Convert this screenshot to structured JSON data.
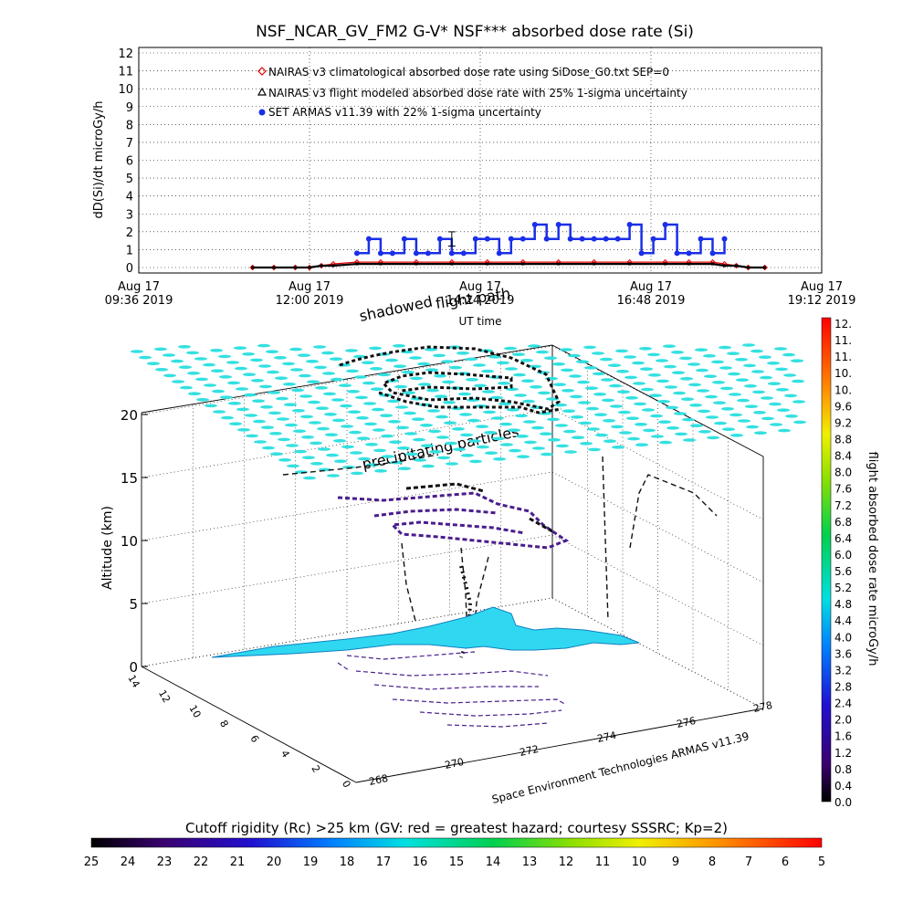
{
  "top_panel": {
    "title": "NSF_NCAR_GV_FM2 G-V* NSF*** absorbed dose rate (Si)",
    "ylabel": "dD(Si)/dt microGy/h",
    "xlabel": "UT time",
    "legend": [
      "NAIRAS v3 climatological absorbed dose rate using SiDose_G0.txt SEP=0",
      "NAIRAS v3 flight modeled absorbed dose rate with 25% 1-sigma uncertainty",
      "SET ARMAS v11.39 with 22% 1-sigma uncertainty"
    ],
    "xticks": [
      {
        "date": "Aug 17",
        "time": "09:36 2019"
      },
      {
        "date": "Aug 17",
        "time": "12:00 2019"
      },
      {
        "date": "Aug 17",
        "time": "14:24 2019"
      },
      {
        "date": "Aug 17",
        "time": "16:48 2019"
      },
      {
        "date": "Aug 17",
        "time": "19:12 2019"
      }
    ]
  },
  "overlays": {
    "shadowed": "shadowed",
    "flight_path": "flight path",
    "precipitating": "precipitating particles"
  },
  "three_d": {
    "zlabel": "Altitude (km)",
    "credit": "Space Environment Technologies ARMAS v11.39",
    "zticks": [
      "0",
      "5",
      "10",
      "15",
      "20"
    ],
    "lon_ticks": [
      "268",
      "270",
      "272",
      "274",
      "276",
      "278"
    ],
    "lat_ticks": [
      "14",
      "12",
      "10",
      "8",
      "6",
      "4",
      "2",
      "0"
    ]
  },
  "right_colorbar": {
    "label": "flight absorbed dose rate microGy/h",
    "ticks": [
      "12.",
      "11.",
      "11.",
      "10.",
      "10.",
      "9.6",
      "9.2",
      "8.8",
      "8.4",
      "8.0",
      "7.6",
      "7.2",
      "6.8",
      "6.4",
      "6.0",
      "5.6",
      "5.2",
      "4.8",
      "4.4",
      "4.0",
      "3.6",
      "3.2",
      "2.8",
      "2.4",
      "2.0",
      "1.6",
      "1.2",
      "0.8",
      "0.4",
      "0.0"
    ]
  },
  "bottom_colorbar": {
    "title": "Cutoff rigidity (Rc) >25 km (GV: red = greatest hazard; courtesy SSSRC; Kp=2)",
    "ticks": [
      "25",
      "24",
      "23",
      "22",
      "21",
      "20",
      "19",
      "18",
      "17",
      "16",
      "15",
      "14",
      "13",
      "12",
      "11",
      "10",
      "9",
      "8",
      "7",
      "6",
      "5"
    ]
  },
  "colors": {
    "nairas_clim": "#e00000",
    "nairas_flight": "#000000",
    "armas": "#1a2fe8",
    "cyan": "#33e0e0",
    "land": "#2fd8f0"
  },
  "chart_data": {
    "type": "scatter",
    "title": "NSF_NCAR_GV_FM2 G-V* NSF*** absorbed dose rate (Si)",
    "xlabel": "UT time",
    "ylabel": "dD(Si)/dt microGy/h",
    "xlim": [
      "09:36",
      "19:12"
    ],
    "ylim": [
      0,
      12
    ],
    "series": [
      {
        "name": "NAIRAS v3 climatological absorbed dose rate using SiDose_G0.txt SEP=0",
        "x": [
          "11:12",
          "11:30",
          "11:48",
          "12:00",
          "12:10",
          "12:20",
          "12:40",
          "13:00",
          "13:30",
          "14:00",
          "14:30",
          "15:00",
          "15:30",
          "16:00",
          "16:30",
          "17:00",
          "17:20",
          "17:40",
          "17:50",
          "18:00",
          "18:10",
          "18:24"
        ],
        "y": [
          0.0,
          0.0,
          0.0,
          0.0,
          0.1,
          0.2,
          0.3,
          0.3,
          0.3,
          0.3,
          0.3,
          0.3,
          0.3,
          0.3,
          0.3,
          0.3,
          0.3,
          0.3,
          0.2,
          0.1,
          0.0,
          0.0
        ]
      },
      {
        "name": "NAIRAS v3 flight modeled absorbed dose rate with 25% 1-sigma uncertainty",
        "x": [
          "11:12",
          "11:30",
          "11:48",
          "12:00",
          "12:10",
          "12:20",
          "12:40",
          "13:00",
          "13:30",
          "14:00",
          "14:30",
          "15:00",
          "15:30",
          "16:00",
          "16:30",
          "17:00",
          "17:20",
          "17:40",
          "17:50",
          "18:00",
          "18:10",
          "18:24"
        ],
        "y": [
          0.0,
          0.0,
          0.0,
          0.0,
          0.1,
          0.1,
          0.2,
          0.2,
          0.2,
          0.2,
          0.2,
          0.2,
          0.2,
          0.2,
          0.2,
          0.2,
          0.2,
          0.2,
          0.1,
          0.1,
          0.0,
          0.0
        ]
      },
      {
        "name": "SET ARMAS v11.39 with 22% 1-sigma uncertainty",
        "x": [
          "12:40",
          "12:50",
          "13:00",
          "13:10",
          "13:20",
          "13:30",
          "13:40",
          "13:50",
          "14:00",
          "14:10",
          "14:20",
          "14:30",
          "14:40",
          "14:50",
          "15:00",
          "15:10",
          "15:20",
          "15:30",
          "15:40",
          "15:50",
          "16:00",
          "16:10",
          "16:20",
          "16:30",
          "16:40",
          "16:50",
          "17:00",
          "17:10",
          "17:20",
          "17:30",
          "17:40",
          "17:50"
        ],
        "y": [
          0.8,
          1.6,
          0.8,
          0.8,
          1.6,
          0.8,
          0.8,
          1.6,
          0.8,
          0.8,
          1.6,
          1.6,
          0.8,
          1.6,
          1.6,
          2.4,
          1.6,
          2.4,
          1.6,
          1.6,
          1.6,
          1.6,
          1.6,
          2.4,
          0.8,
          1.6,
          2.4,
          0.8,
          0.8,
          1.6,
          0.8,
          1.6
        ]
      }
    ]
  }
}
